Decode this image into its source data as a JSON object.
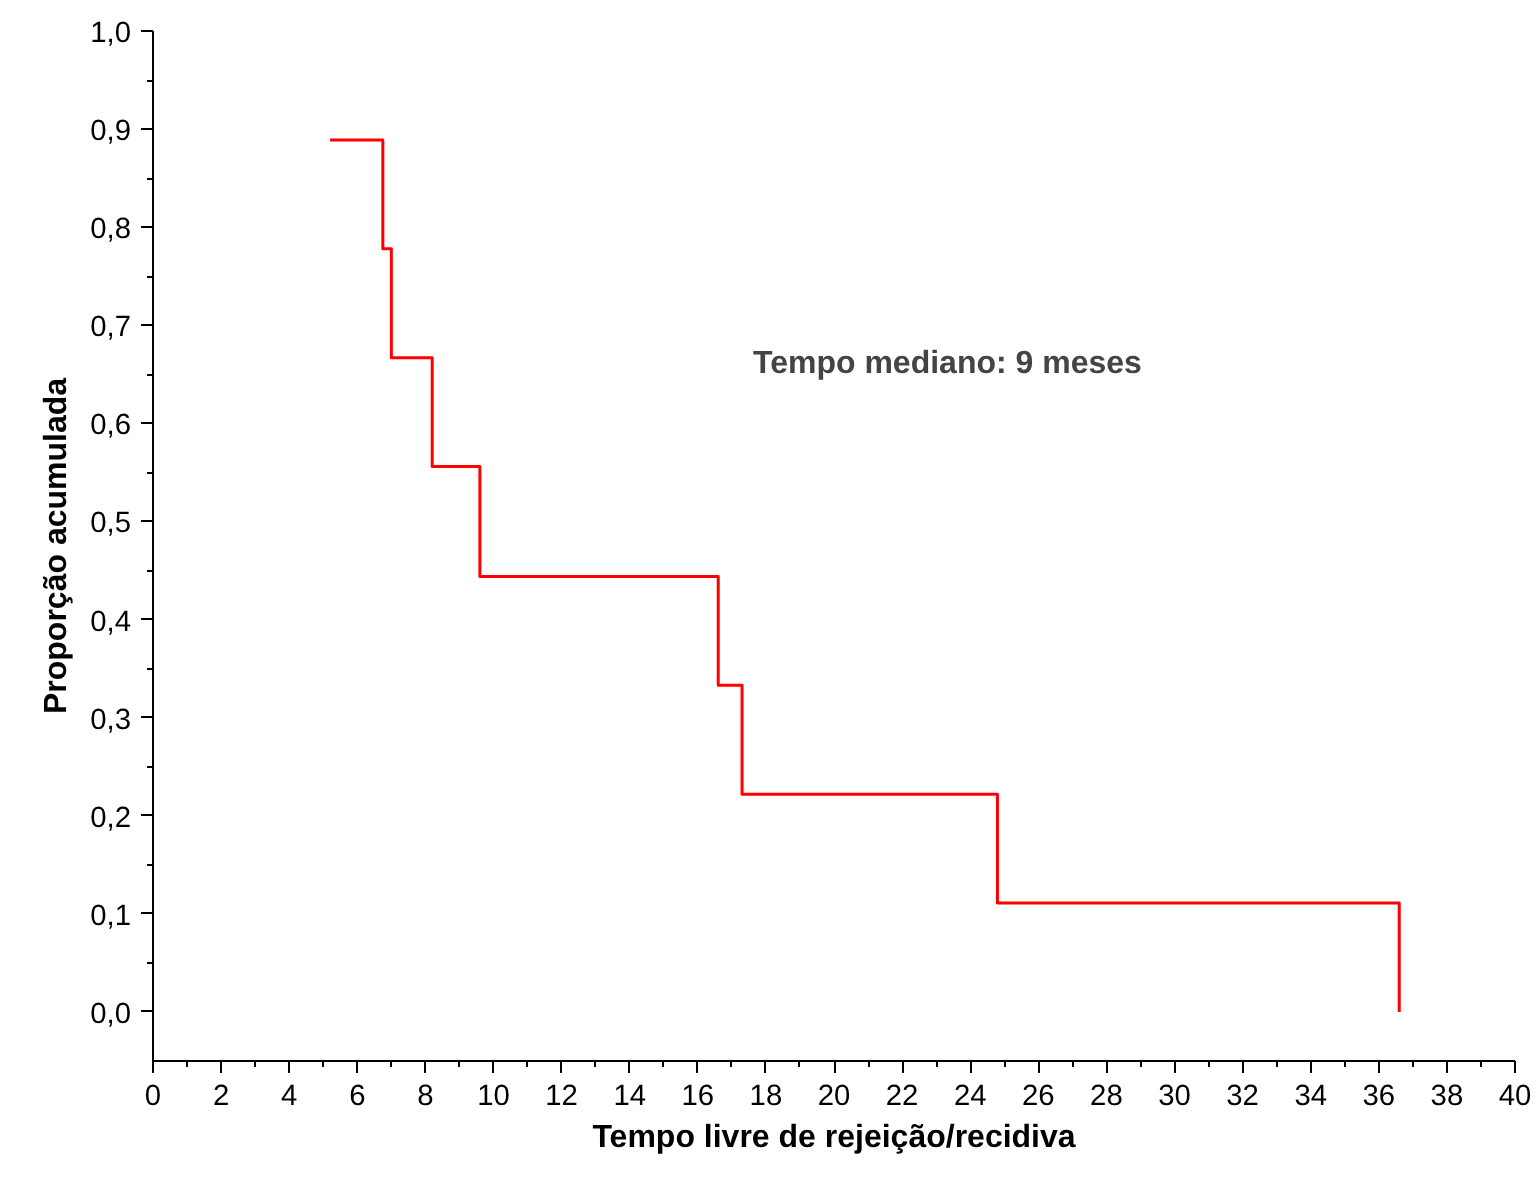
{
  "chart_data": {
    "type": "step",
    "xlabel": "Tempo livre de rejeição/recidiva",
    "ylabel": "Proporção acumulada",
    "annotations": [
      "Tempo mediano: 9 meses"
    ],
    "series": [
      {
        "color": "#ff0000",
        "x": [
          5.2,
          6.75,
          7.0,
          8.2,
          9.6,
          16.6,
          17.3,
          24.8,
          36.6
        ],
        "values": [
          0.889,
          0.778,
          0.667,
          0.556,
          0.444,
          0.333,
          0.222,
          0.111,
          0.0
        ]
      }
    ],
    "xlim": [
      0,
      40
    ],
    "xticks": [
      0,
      2,
      4,
      6,
      8,
      10,
      12,
      14,
      16,
      18,
      20,
      22,
      24,
      26,
      28,
      30,
      32,
      34,
      36,
      38,
      40
    ],
    "ylim": [
      -0.05,
      1.0
    ],
    "yticks": [
      {
        "value": 0,
        "label": "0,0"
      },
      {
        "value": 0.1,
        "label": "0,1"
      },
      {
        "value": 0.2,
        "label": "0,2"
      },
      {
        "value": 0.3,
        "label": "0,3"
      },
      {
        "value": 0.4,
        "label": "0,4"
      },
      {
        "value": 0.5,
        "label": "0,5"
      },
      {
        "value": 0.6,
        "label": "0,6"
      },
      {
        "value": 0.7,
        "label": "0,7"
      },
      {
        "value": 0.8,
        "label": "0,8"
      },
      {
        "value": 0.9,
        "label": "0,9"
      },
      {
        "value": 1.0,
        "label": "1,0"
      }
    ],
    "grid": false
  }
}
